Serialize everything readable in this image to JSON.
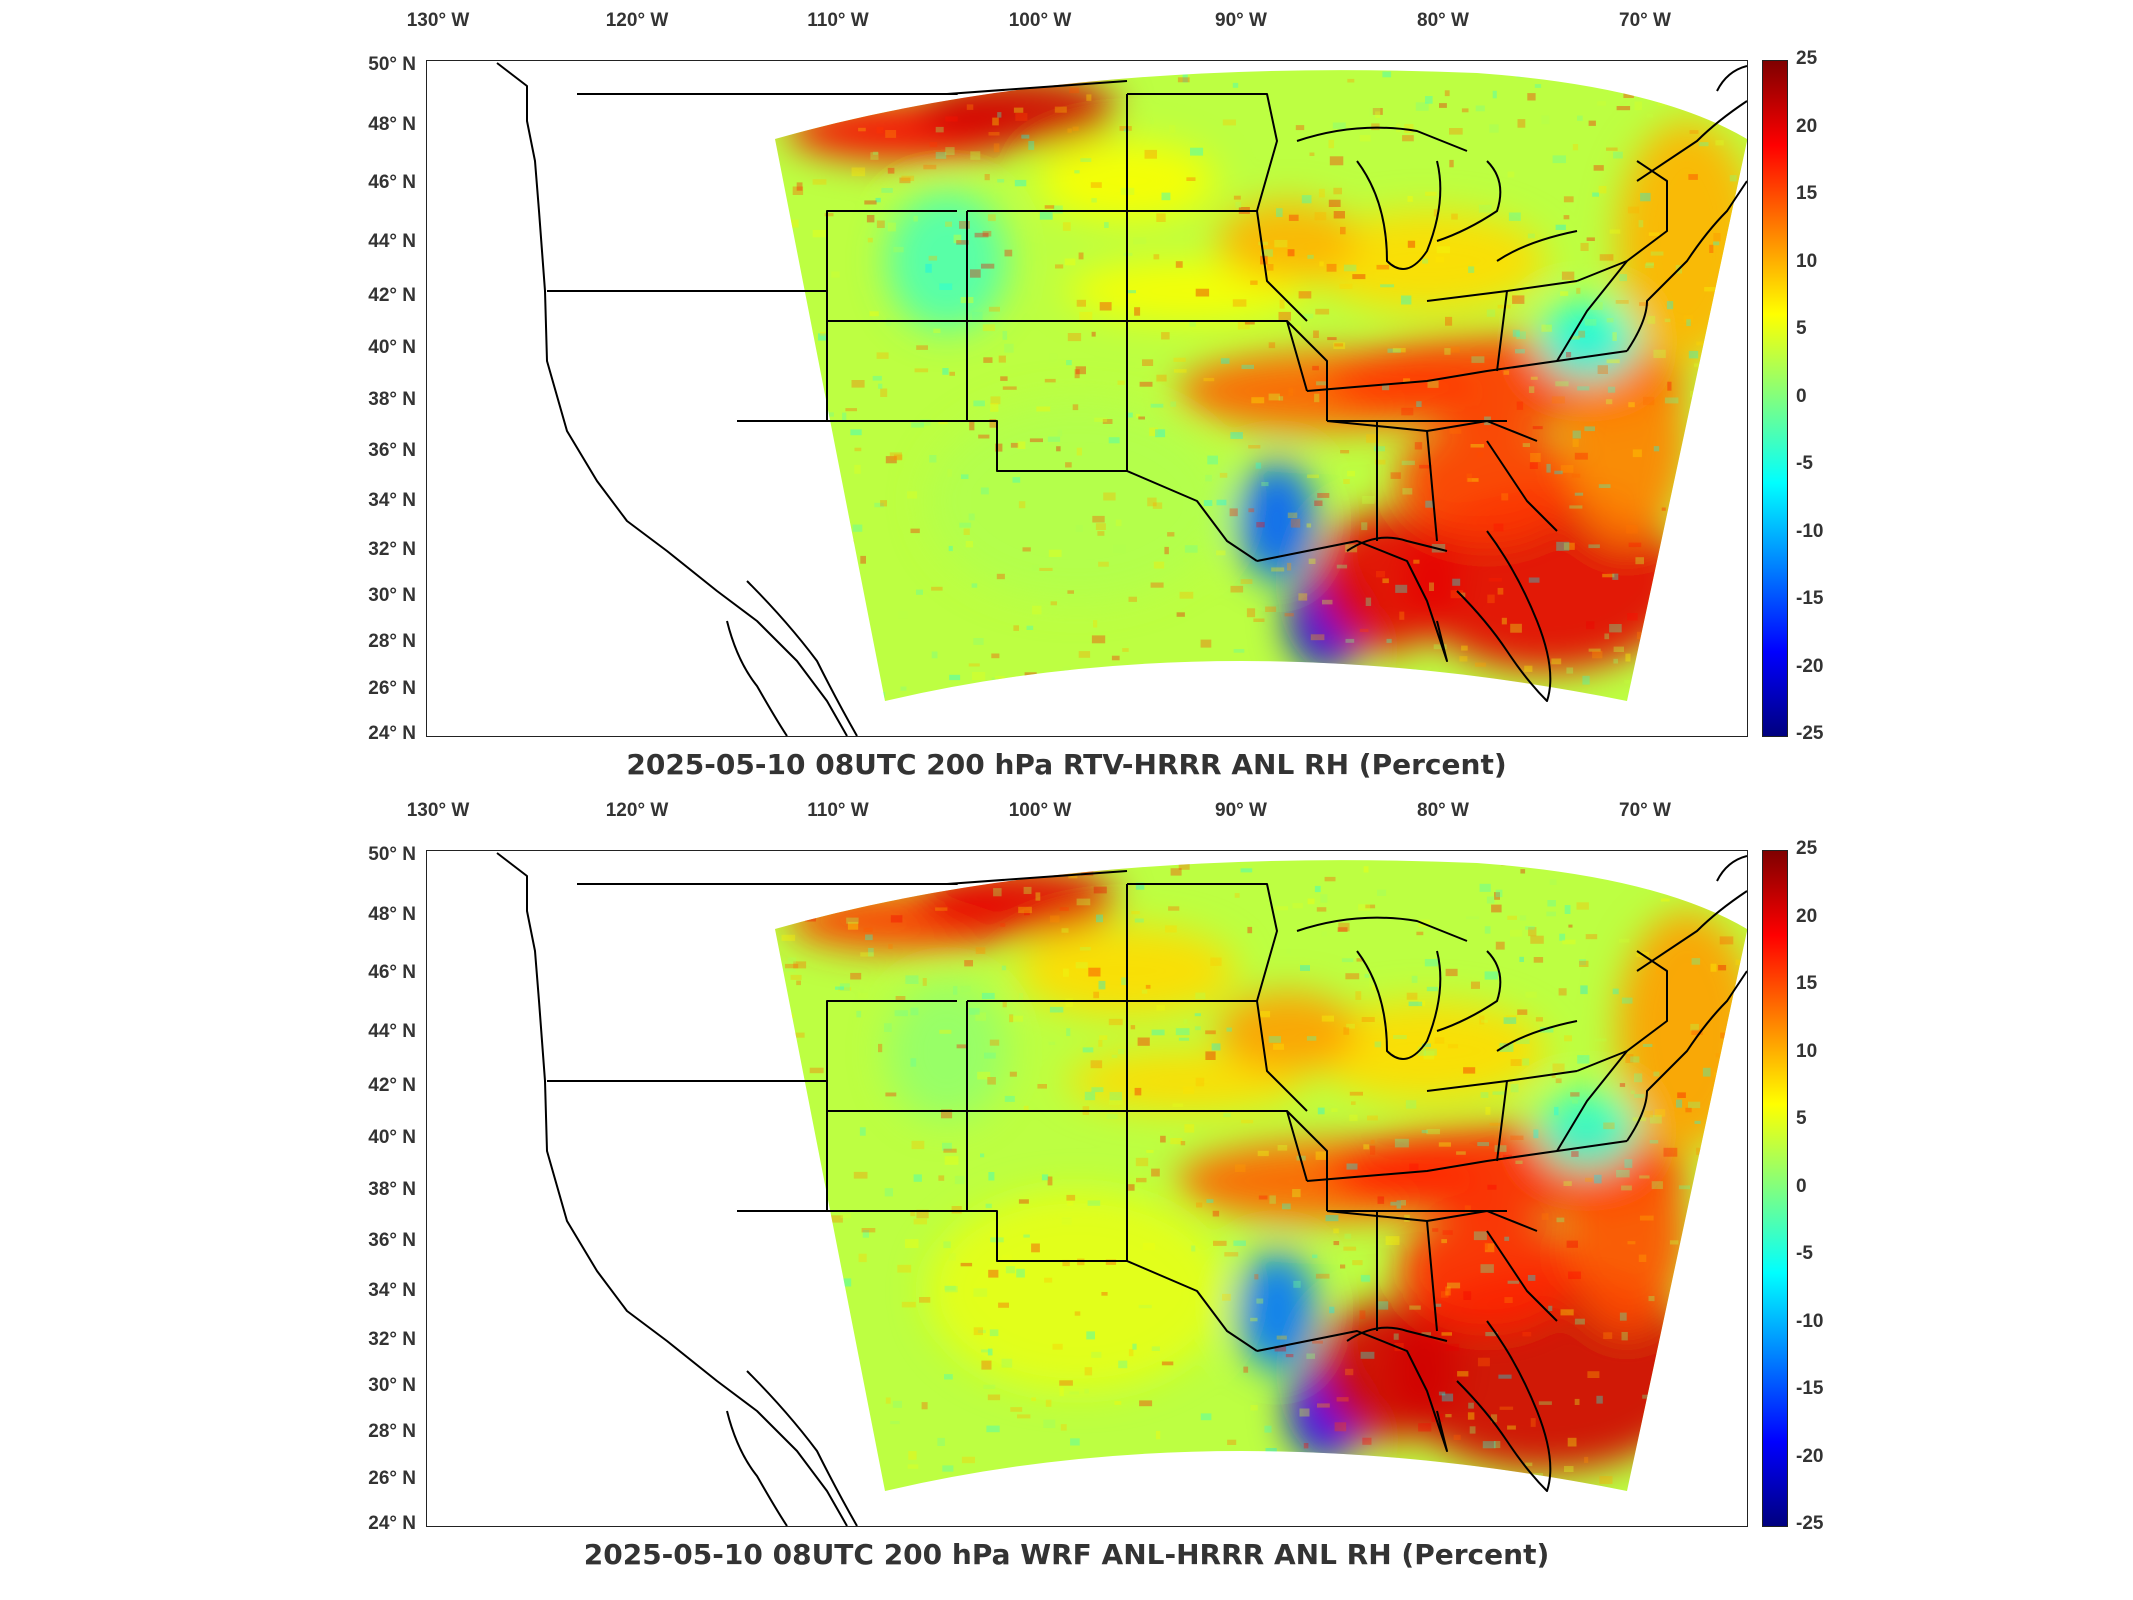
{
  "lon_labels": [
    "130° W",
    "120° W",
    "110° W",
    "100° W",
    "90° W",
    "80° W",
    "70° W"
  ],
  "lat_labels": [
    "50° N",
    "48° N",
    "46° N",
    "44° N",
    "42° N",
    "40° N",
    "38° N",
    "36° N",
    "34° N",
    "32° N",
    "30° N",
    "28° N",
    "26° N",
    "24° N"
  ],
  "colorbar": {
    "ticks": [
      "25",
      "20",
      "15",
      "10",
      "5",
      "0",
      "-5",
      "-10",
      "-15",
      "-20",
      "-25"
    ],
    "range": [
      -25,
      25
    ],
    "colormap": "jet",
    "colors": [
      "#00007f",
      "#0000ff",
      "#0080ff",
      "#00ffff",
      "#80ff80",
      "#ffff00",
      "#ff8000",
      "#ff0000",
      "#7f0000"
    ]
  },
  "panels": [
    {
      "title": "2025-05-10 08UTC 200 hPa RTV-HRRR ANL RH (Percent)"
    },
    {
      "title": "2025-05-10 08UTC 200 hPa WRF ANL-HRRR ANL RH (Percent)"
    }
  ]
}
